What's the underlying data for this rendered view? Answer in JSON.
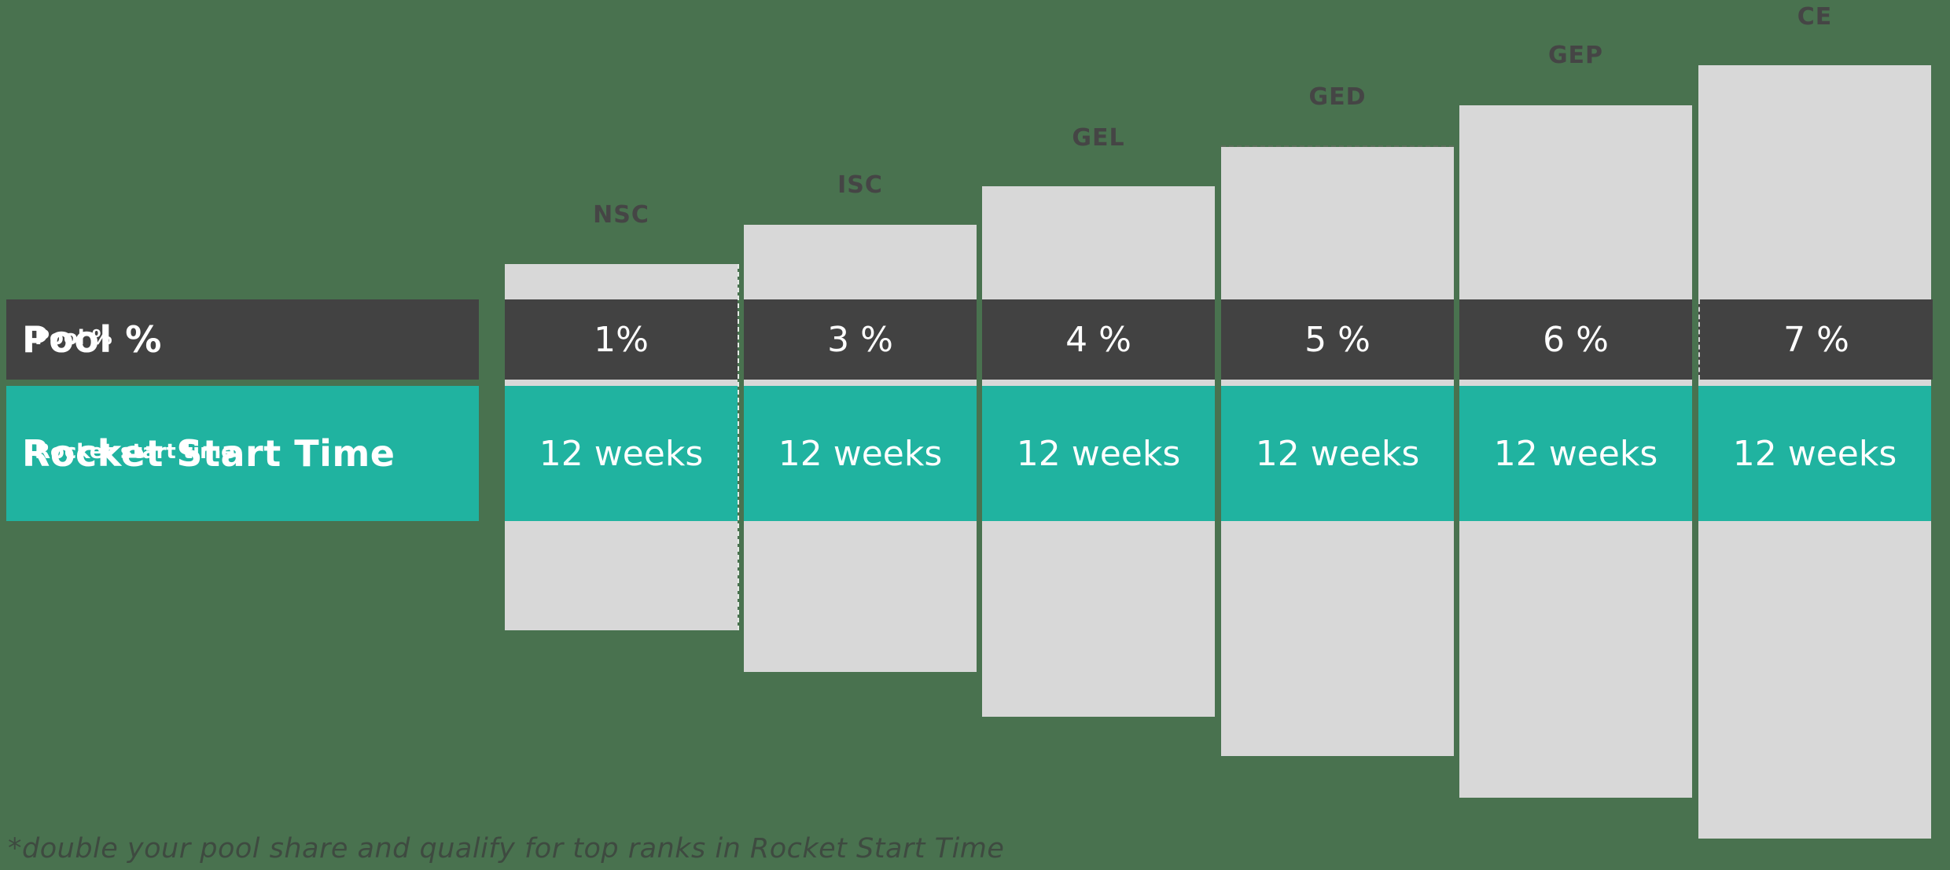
{
  "chart_data": {
    "type": "table",
    "title": "",
    "categories": [
      "NSC",
      "ISC",
      "GEL",
      "GED",
      "GEP",
      "CE"
    ],
    "series": [
      {
        "name": "Pool %",
        "values": [
          "1%",
          "3 %",
          "4 %",
          "5 %",
          "6 %",
          "7 %"
        ],
        "numeric_values": [
          1,
          3,
          4,
          5,
          6,
          7
        ]
      },
      {
        "name": "Rocket Start Time",
        "values": [
          "12 weeks",
          "12 weeks",
          "12 weeks",
          "12 weeks",
          "12 weeks",
          "12 weeks"
        ],
        "numeric_values_weeks": [
          12,
          12,
          12,
          12,
          12,
          12
        ]
      }
    ],
    "layout_hint": "stepped columns rising left-to-right, row bands overlay all columns",
    "footnote": "*double your pool share and qualify for top ranks in Rocket Start Time"
  },
  "rows": {
    "pool": {
      "label": "Pool %",
      "ghost_label": "Pool %"
    },
    "time": {
      "label": "Rocket Start Time",
      "ghost_label": "Rocket start time"
    }
  },
  "columns": [
    {
      "rank": "NSC",
      "pool": "1%",
      "time": "12 weeks"
    },
    {
      "rank": "ISC",
      "pool": "3 %",
      "time": "12 weeks"
    },
    {
      "rank": "GEL",
      "pool": "4 %",
      "time": "12 weeks"
    },
    {
      "rank": "GED",
      "pool": "5 %",
      "time": "12 weeks"
    },
    {
      "rank": "GEP",
      "pool": "6 %",
      "time": "12 weeks"
    },
    {
      "rank": "CE",
      "pool": "7 %",
      "time": "12 weeks"
    }
  ],
  "footnote": "*double your pool share and qualify for top ranks in Rocket Start Time",
  "colors": {
    "background": "#49724f",
    "band_dark": "#424242",
    "band_teal": "#20b3a0",
    "column_gray": "#d8d8d8",
    "value_text": "#ffffff",
    "header_text": "#454545",
    "footnote_text": "#3e4a40"
  }
}
